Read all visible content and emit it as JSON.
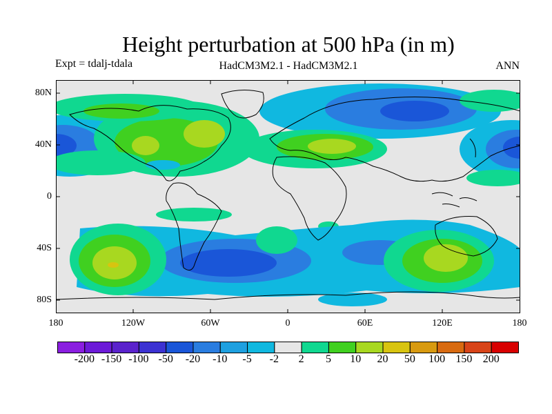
{
  "title": "Height perturbation at 500 hPa (in m)",
  "experiment": "Expt = tdalj-tdala",
  "models": "HadCM3M2.1 - HadCM3M2.1",
  "season": "ANN",
  "lat_labels": [
    "80N",
    "40N",
    "0",
    "40S",
    "80S"
  ],
  "lon_labels": [
    "180",
    "120W",
    "60W",
    "0",
    "60E",
    "120E",
    "180"
  ],
  "colorbar": {
    "labels": [
      "-200",
      "-150",
      "-100",
      "-50",
      "-20",
      "-10",
      "-5",
      "-2",
      "2",
      "5",
      "10",
      "20",
      "50",
      "100",
      "150",
      "200"
    ],
    "colors": [
      "#8a1ee0",
      "#6c1ad8",
      "#5a22cc",
      "#3c32d2",
      "#1a56d8",
      "#2a7de0",
      "#1ea0e0",
      "#10b8e0",
      "#e6e6e6",
      "#10d890",
      "#40d020",
      "#a8d820",
      "#d8c410",
      "#d89a10",
      "#d86a10",
      "#d84418",
      "#d80000"
    ]
  },
  "colors": {
    "background": "#e6e6e6",
    "coast": "#000000"
  }
}
